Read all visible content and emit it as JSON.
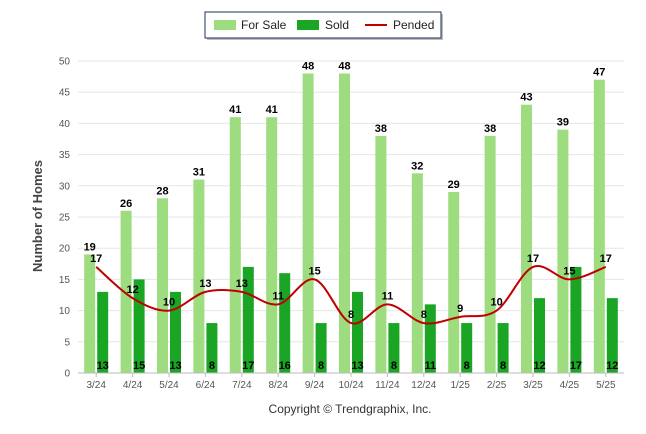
{
  "chart_data": {
    "type": "bar",
    "categories": [
      "3/24",
      "4/24",
      "5/24",
      "6/24",
      "7/24",
      "8/24",
      "9/24",
      "10/24",
      "11/24",
      "12/24",
      "1/25",
      "2/25",
      "3/25",
      "4/25",
      "5/25"
    ],
    "series": [
      {
        "name": "For Sale",
        "kind": "bar",
        "color": "#9ddc7f",
        "values": [
          19,
          26,
          28,
          31,
          41,
          41,
          48,
          48,
          38,
          32,
          29,
          38,
          43,
          39,
          47
        ]
      },
      {
        "name": "Sold",
        "kind": "bar",
        "color": "#1aa524",
        "values": [
          13,
          15,
          13,
          8,
          17,
          16,
          8,
          13,
          8,
          11,
          8,
          8,
          12,
          17,
          12
        ]
      },
      {
        "name": "Pended",
        "kind": "line",
        "color": "#c00000",
        "values": [
          17,
          12,
          10,
          13,
          13,
          11,
          15,
          8,
          11,
          8,
          9,
          10,
          17,
          15,
          17
        ]
      }
    ],
    "ylabel": "Number of Homes",
    "xlabel": "",
    "ylim": [
      0,
      50
    ],
    "yticks": [
      0,
      5,
      10,
      15,
      20,
      25,
      30,
      35,
      40,
      45,
      50
    ],
    "grid": true,
    "legend_position": "top-center"
  },
  "footer": {
    "copyright": "Copyright © Trendgraphix, Inc."
  }
}
